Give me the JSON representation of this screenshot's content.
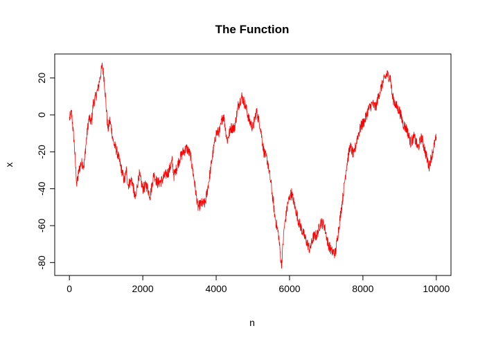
{
  "chart_data": {
    "type": "line",
    "title": "The Function",
    "xlabel": "n",
    "ylabel": "x",
    "xlim": [
      -400,
      10400
    ],
    "ylim": [
      -87,
      33
    ],
    "x_ticks": [
      0,
      2000,
      4000,
      6000,
      8000,
      10000
    ],
    "x_tick_labels": [
      "0",
      "2000",
      "4000",
      "6000",
      "8000",
      "10000"
    ],
    "y_ticks": [
      -80,
      -60,
      -40,
      -20,
      0,
      20
    ],
    "y_tick_labels": [
      "-80",
      "-60",
      "-40",
      "-20",
      "0",
      "20"
    ],
    "grid": false,
    "legend": "none",
    "line_color": "#ff0000",
    "series": [
      {
        "points": [
          [
            0,
            -2
          ],
          [
            60,
            1
          ],
          [
            130,
            -15
          ],
          [
            200,
            -38
          ],
          [
            260,
            -30
          ],
          [
            320,
            -26
          ],
          [
            400,
            -27
          ],
          [
            470,
            -12
          ],
          [
            530,
            -2
          ],
          [
            600,
            -4
          ],
          [
            650,
            6
          ],
          [
            720,
            10
          ],
          [
            780,
            14
          ],
          [
            850,
            22
          ],
          [
            900,
            27
          ],
          [
            950,
            19
          ],
          [
            1000,
            5
          ],
          [
            1050,
            -8
          ],
          [
            1100,
            -3
          ],
          [
            1150,
            -8
          ],
          [
            1200,
            -15
          ],
          [
            1300,
            -20
          ],
          [
            1400,
            -28
          ],
          [
            1500,
            -36
          ],
          [
            1550,
            -30
          ],
          [
            1600,
            -38
          ],
          [
            1700,
            -35
          ],
          [
            1800,
            -46
          ],
          [
            1850,
            -38
          ],
          [
            1900,
            -32
          ],
          [
            2000,
            -40
          ],
          [
            2100,
            -38
          ],
          [
            2200,
            -44
          ],
          [
            2300,
            -32
          ],
          [
            2400,
            -37
          ],
          [
            2500,
            -36
          ],
          [
            2600,
            -33
          ],
          [
            2700,
            -31
          ],
          [
            2800,
            -25
          ],
          [
            2850,
            -33
          ],
          [
            2900,
            -30
          ],
          [
            3000,
            -24
          ],
          [
            3100,
            -20
          ],
          [
            3200,
            -18
          ],
          [
            3300,
            -22
          ],
          [
            3400,
            -35
          ],
          [
            3500,
            -50
          ],
          [
            3600,
            -48
          ],
          [
            3700,
            -48
          ],
          [
            3800,
            -36
          ],
          [
            3900,
            -22
          ],
          [
            4000,
            -10
          ],
          [
            4100,
            -9
          ],
          [
            4150,
            -3
          ],
          [
            4200,
            0
          ],
          [
            4300,
            -14
          ],
          [
            4400,
            -7
          ],
          [
            4500,
            -7
          ],
          [
            4600,
            5
          ],
          [
            4700,
            10
          ],
          [
            4800,
            5
          ],
          [
            4900,
            -3
          ],
          [
            5000,
            -7
          ],
          [
            5100,
            2
          ],
          [
            5200,
            -6
          ],
          [
            5300,
            -20
          ],
          [
            5400,
            -25
          ],
          [
            5500,
            -38
          ],
          [
            5600,
            -55
          ],
          [
            5700,
            -65
          ],
          [
            5780,
            -82
          ],
          [
            5850,
            -62
          ],
          [
            5950,
            -48
          ],
          [
            6050,
            -42
          ],
          [
            6150,
            -50
          ],
          [
            6250,
            -58
          ],
          [
            6350,
            -63
          ],
          [
            6450,
            -68
          ],
          [
            6550,
            -73
          ],
          [
            6650,
            -66
          ],
          [
            6750,
            -65
          ],
          [
            6850,
            -58
          ],
          [
            6950,
            -60
          ],
          [
            7050,
            -70
          ],
          [
            7150,
            -74
          ],
          [
            7250,
            -75
          ],
          [
            7350,
            -60
          ],
          [
            7450,
            -45
          ],
          [
            7550,
            -28
          ],
          [
            7650,
            -17
          ],
          [
            7750,
            -22
          ],
          [
            7850,
            -12
          ],
          [
            7950,
            -6
          ],
          [
            8050,
            -3
          ],
          [
            8150,
            3
          ],
          [
            8250,
            6
          ],
          [
            8350,
            4
          ],
          [
            8450,
            12
          ],
          [
            8550,
            18
          ],
          [
            8650,
            22
          ],
          [
            8750,
            20
          ],
          [
            8800,
            10
          ],
          [
            8900,
            5
          ],
          [
            9000,
            2
          ],
          [
            9100,
            -5
          ],
          [
            9200,
            -8
          ],
          [
            9300,
            -15
          ],
          [
            9400,
            -12
          ],
          [
            9500,
            -18
          ],
          [
            9600,
            -12
          ],
          [
            9700,
            -20
          ],
          [
            9800,
            -28
          ],
          [
            9900,
            -20
          ],
          [
            10000,
            -12
          ]
        ]
      }
    ]
  }
}
